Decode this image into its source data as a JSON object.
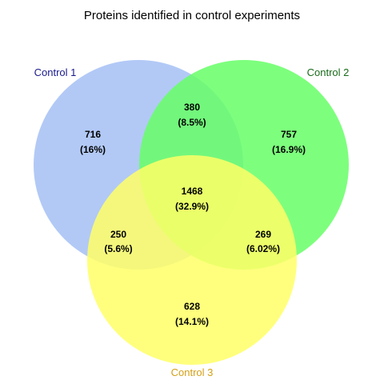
{
  "title": "Proteins identified in control experiments",
  "sets": [
    {
      "name": "Control 1",
      "fill": "#a4c0f4",
      "label_color": "#1a1a8c"
    },
    {
      "name": "Control 2",
      "fill": "#66ff66",
      "label_color": "#1a6b1a"
    },
    {
      "name": "Control 3",
      "fill": "#ffff66",
      "label_color": "#d4a017"
    }
  ],
  "regions": {
    "only_1": {
      "count": "716",
      "percent": "(16%)"
    },
    "only_2": {
      "count": "757",
      "percent": "(16.9%)"
    },
    "only_3": {
      "count": "628",
      "percent": "(14.1%)"
    },
    "one_two": {
      "count": "380",
      "percent": "(8.5%)"
    },
    "one_three": {
      "count": "250",
      "percent": "(5.6%)"
    },
    "two_three": {
      "count": "269",
      "percent": "(6.02%)"
    },
    "all": {
      "count": "1468",
      "percent": "(32.9%)"
    }
  }
}
